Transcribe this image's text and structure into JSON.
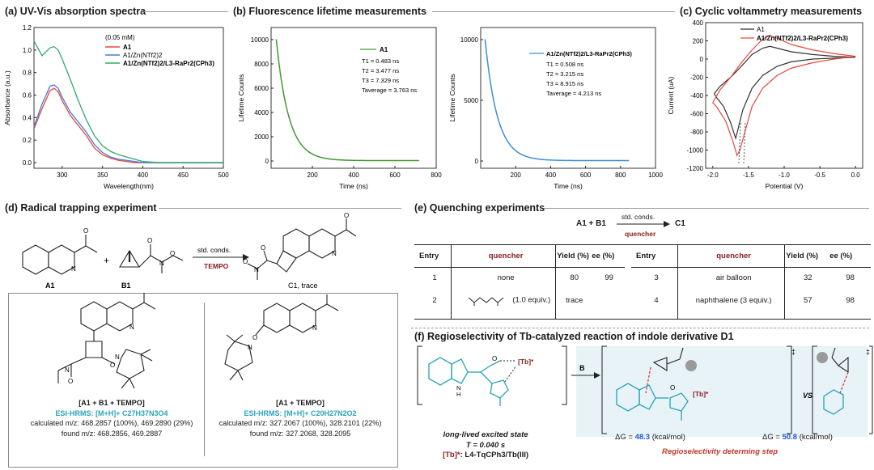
{
  "panels": {
    "a": {
      "title": "(a) UV-Vis absorption spectra"
    },
    "b": {
      "title": "(b) Fluorescence lifetime measurements"
    },
    "c": {
      "title": "(c) Cyclic voltammetry measurements"
    },
    "d": {
      "title": "(d) Radical trapping experiment"
    },
    "e": {
      "title": "(e) Quenching experiments"
    },
    "f": {
      "title": "(f) Regioselectivity of Tb-catalyzed reaction of indole derivative D1"
    }
  },
  "colors": {
    "red": "#e8473f",
    "blue": "#4a78d8",
    "green": "#2fa872",
    "green_decay": "#3e9a2e",
    "blue_decay": "#3b8fd6",
    "teal": "#2aa3b8",
    "darkred": "#8b1a1a"
  },
  "chart_data": [
    {
      "type": "line",
      "title": "(a) UV-Vis absorption spectra",
      "xlabel": "Wavelength(nm)",
      "ylabel": "Absorbance (a.u.)",
      "xlim": [
        265,
        500
      ],
      "ylim": [
        -0.05,
        1.2
      ],
      "xticks": [
        "300",
        "350",
        "400",
        "450",
        "500"
      ],
      "yticks": [
        "0.0",
        "0.2",
        "0.4",
        "0.6",
        "0.8",
        "1.0",
        "1.2"
      ],
      "annotation": "(0.05 mM)",
      "legend_position": "top-right",
      "x": [
        265,
        275,
        285,
        290,
        295,
        300,
        310,
        320,
        330,
        340,
        350,
        360,
        370,
        380,
        390,
        400,
        420,
        450,
        500
      ],
      "series": [
        {
          "name": "A1",
          "color": "#e8473f",
          "values": [
            0.3,
            0.48,
            0.64,
            0.66,
            0.63,
            0.55,
            0.42,
            0.33,
            0.24,
            0.13,
            0.07,
            0.04,
            0.02,
            0.01,
            0.0,
            0.0,
            0.0,
            0.0,
            0.0
          ]
        },
        {
          "name": "A1/Zn(NTf2)2",
          "color": "#4a78d8",
          "values": [
            0.32,
            0.52,
            0.68,
            0.69,
            0.66,
            0.58,
            0.45,
            0.36,
            0.27,
            0.16,
            0.09,
            0.05,
            0.03,
            0.02,
            0.01,
            0.0,
            0.0,
            0.0,
            0.0
          ]
        },
        {
          "name": "A1/Zn(NTf2)2/L3-RaPr2(CPh3)",
          "color": "#2fa872",
          "values": [
            1.08,
            0.95,
            1.02,
            1.03,
            1.0,
            0.92,
            0.74,
            0.55,
            0.38,
            0.24,
            0.15,
            0.1,
            0.07,
            0.05,
            0.03,
            0.01,
            0.0,
            0.0,
            0.0
          ]
        }
      ]
    },
    {
      "type": "line",
      "title": "(b) Fluorescence lifetime measurements",
      "xlabel": "Time (ns)",
      "ylabel": "Lifetime Counts",
      "xlim": [
        0,
        800
      ],
      "ylim": [
        -600,
        11000
      ],
      "xticks": [
        "200",
        "400",
        "600",
        "800"
      ],
      "yticks": [
        "0",
        "2000",
        "4000",
        "6000",
        "8000",
        "10000"
      ],
      "series": [
        {
          "name": "A1",
          "color": "#3e9a2e",
          "t_start": 25,
          "t_end": 720,
          "peak": 10000,
          "tau": 60
        }
      ],
      "legend_lines": [
        "T1 = 0.483 ns",
        "T2 = 3.477 ns",
        "T3 = 7.329 ns",
        "Taverage = 3.763 ns"
      ]
    },
    {
      "type": "line",
      "xlabel": "Time (ns)",
      "ylabel": "Lifetime Counts",
      "xlim": [
        0,
        1000
      ],
      "ylim": [
        -600,
        11000
      ],
      "xticks": [
        "200",
        "400",
        "600",
        "800",
        "1000"
      ],
      "yticks": [
        "0",
        "5000",
        "10000"
      ],
      "series": [
        {
          "name": "A1/Zn(NTf2)2/L3-RaPr2(CPh3)",
          "color": "#3b8fd6",
          "t_start": 25,
          "t_end": 850,
          "peak": 10000,
          "tau": 70
        }
      ],
      "legend_lines": [
        "T1 = 0.508 ns",
        "T2 = 3.215 ns",
        "T3 = 8.915 ns",
        "Taverage = 4.213 ns"
      ]
    },
    {
      "type": "line",
      "title": "(c) Cyclic voltammetry measurements",
      "xlabel": "Potential (V)",
      "ylabel": "Current (uA)",
      "xlim": [
        -2.1,
        0.1
      ],
      "ylim": [
        -1200,
        400
      ],
      "xticks": [
        "-2.0",
        "-1.5",
        "-1.0",
        "-0.5",
        "0.0"
      ],
      "yticks": [
        "-1200",
        "-1000",
        "-800",
        "-600",
        "-400",
        "-200",
        "0",
        "200",
        "400"
      ],
      "legend_position": "top-left",
      "series": [
        {
          "name": "A1",
          "color": "#333333",
          "x": [
            0.0,
            -0.3,
            -0.6,
            -0.9,
            -1.1,
            -1.3,
            -1.45,
            -1.58,
            -1.65,
            -1.68,
            -1.75,
            -1.85,
            -1.95,
            -1.98,
            -1.9,
            -1.75,
            -1.6,
            -1.45,
            -1.3,
            -1.2,
            -1.1,
            -0.9,
            -0.6,
            -0.3,
            0.0
          ],
          "y": [
            20,
            10,
            0,
            -30,
            -80,
            -180,
            -320,
            -560,
            -780,
            -870,
            -700,
            -520,
            -420,
            -380,
            -300,
            -200,
            -80,
            50,
            120,
            140,
            120,
            80,
            50,
            30,
            20
          ]
        },
        {
          "name": "A1/Zn(NTf2)2/L3-RaPr2(CPh3)",
          "color": "#e8473f",
          "x": [
            0.0,
            -0.3,
            -0.6,
            -0.9,
            -1.1,
            -1.3,
            -1.45,
            -1.55,
            -1.62,
            -1.66,
            -1.72,
            -1.82,
            -1.95,
            -2.0,
            -1.9,
            -1.75,
            -1.6,
            -1.45,
            -1.3,
            -1.2,
            -1.1,
            -0.9,
            -0.6,
            -0.3,
            0.0
          ],
          "y": [
            30,
            0,
            -40,
            -100,
            -180,
            -320,
            -520,
            -800,
            -1000,
            -1060,
            -900,
            -680,
            -520,
            -480,
            -340,
            -200,
            -40,
            100,
            220,
            260,
            230,
            160,
            100,
            60,
            30
          ]
        }
      ]
    }
  ],
  "uv_legend": {
    "conc": "(0.05 mM)",
    "s1": "A1",
    "s2": "A1/Zn(NTf2)2",
    "s3": "A1/Zn(NTf2)2/L3-RaPr2(CPh3)"
  },
  "fl_legend1": {
    "name": "A1",
    "l1": "T1 = 0.483 ns",
    "l2": "T2 = 3.477 ns",
    "l3": "T3 = 7.329 ns",
    "l4": "Taverage = 3.763 ns"
  },
  "fl_legend2": {
    "name": "A1/Zn(NTf2)2/L3-RaPr2(CPh3)",
    "l1": "T1 = 0.508 ns",
    "l2": "T2 = 3.215 ns",
    "l3": "T3 = 8.915 ns",
    "l4": "Taverage = 4.213 ns"
  },
  "cv_legend": {
    "s1": "A1",
    "s2": "A1/Zn(NTf2)2/L3-RaPr2(CPh3)"
  },
  "scheme_d": {
    "label_a1": "A1",
    "label_b1": "B1",
    "plus": "+",
    "cond": "std. conds.",
    "reagent": "TEMPO",
    "product": "C1, trace",
    "adduct1": {
      "title": "[A1 + B1 + TEMPO]",
      "ms": "ESI-HRMS: [M+H]+ C27H37N3O4",
      "calc": "calculated m/z: 468.2857 (100%), 469.2890 (29%)",
      "found": "found m/z: 468.2856, 469.2887"
    },
    "adduct2": {
      "title": "[A1 + TEMPO]",
      "ms": "ESI-HRMS: [M+H]+ C20H27N2O2",
      "calc": "calculated m/z: 327.2067 (100%), 328.2101 (22%)",
      "found": "found m/z: 327.2068, 328.2095"
    }
  },
  "scheme_e": {
    "reactants": "A1 + B1",
    "cond": "std. conds.",
    "reagent": "quencher",
    "product": "C1"
  },
  "table": {
    "headers": [
      "Entry",
      "quencher",
      "Yield (%)",
      "ee (%)"
    ],
    "left": [
      {
        "entry": "1",
        "quencher": "none",
        "yield": "80",
        "ee": "99"
      },
      {
        "entry": "2",
        "quencher": "(1.0 equiv.)",
        "yield": "trace",
        "ee": ""
      }
    ],
    "right": [
      {
        "entry": "3",
        "quencher": "air balloon",
        "yield": "32",
        "ee": "98"
      },
      {
        "entry": "4",
        "quencher": "naphthalene (3 equiv.)",
        "yield": "57",
        "ee": "98"
      }
    ]
  },
  "scheme_f": {
    "tb": "[Tb]*",
    "arrow_label": "B",
    "vs": "VS",
    "dagger": "‡",
    "excited1": "long-lived excited state",
    "excited2": "T = 0.040 s",
    "tbdef_a": "[Tb]*",
    "tbdef_b": ": L4-TqCPh3/Tb(III)",
    "dg1_pre": "ΔG = ",
    "dg1_val": "48.3",
    "dg1_post": " (kcal/mol)",
    "dg2_pre": "ΔG = ",
    "dg2_val": "50.8",
    "dg2_post": " (kcal/mol)",
    "rds": "Regioselectivity determing step"
  }
}
